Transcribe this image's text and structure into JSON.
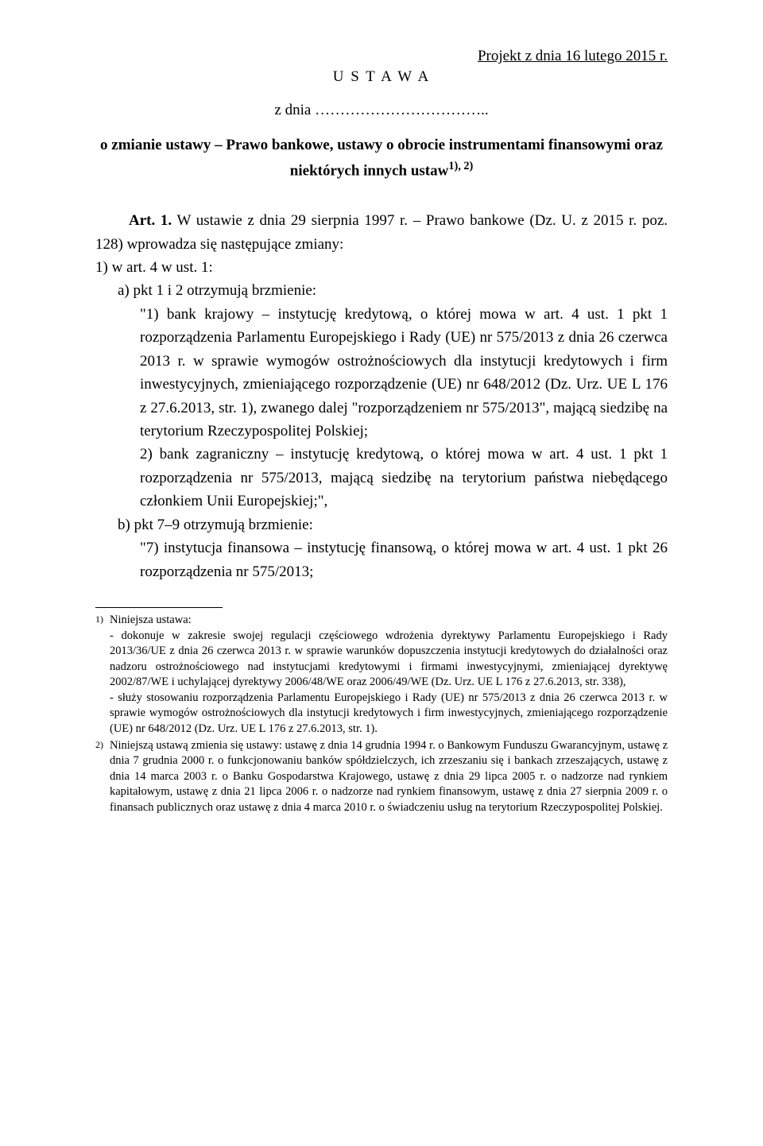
{
  "header": {
    "project_date": "Projekt z dnia 16 lutego 2015 r.",
    "ustawa": "U S T A W A",
    "zdnia": "z dnia ……………………………..",
    "title_line1": "o zmianie ustawy – Prawo bankowe, ustawy o obrocie instrumentami finansowymi oraz",
    "title_line2_prefix": "niektórych innych ustaw",
    "title_line2_sup": "1), 2)"
  },
  "article": {
    "art1_intro": "Art. 1. W ustawie z dnia 29 sierpnia 1997 r. – Prawo bankowe (Dz. U. z 2015 r. poz. 128) wprowadza się następujące zmiany:",
    "pt1": "1) w art. 4 w ust. 1:",
    "a_intro": "a) pkt 1 i 2 otrzymują brzmienie:",
    "a_q1": "\"1) bank krajowy – instytucję kredytową, o której mowa w art. 4 ust. 1 pkt 1 rozporządzenia Parlamentu Europejskiego i Rady (UE) nr 575/2013 z dnia 26 czerwca 2013 r. w sprawie wymogów ostrożnościowych dla instytucji kredytowych i firm inwestycyjnych, zmieniającego rozporządzenie (UE) nr 648/2012 (Dz. Urz. UE L 176 z 27.6.2013, str. 1), zwanego dalej \"rozporządzeniem nr 575/2013\", mającą siedzibę na terytorium Rzeczypospolitej Polskiej;",
    "a_q2": "2) bank zagraniczny – instytucję kredytową, o której mowa w art. 4 ust. 1 pkt 1 rozporządzenia nr 575/2013, mającą siedzibę na terytorium państwa niebędącego członkiem Unii Europejskiej;\",",
    "b_intro": "b) pkt 7–9 otrzymują brzmienie:",
    "b_q7": "\"7) instytucja finansowa – instytucję finansową, o której mowa w art. 4 ust. 1 pkt 26 rozporządzenia nr 575/2013;"
  },
  "footnotes": {
    "fn1_marker": "1)",
    "fn1_intro": "Niniejsza ustawa:",
    "fn1_a": "- dokonuje w zakresie swojej regulacji częściowego wdrożenia dyrektywy Parlamentu Europejskiego i Rady 2013/36/UE z dnia 26 czerwca 2013 r. w sprawie warunków dopuszczenia instytucji kredytowych do działalności oraz nadzoru ostrożnościowego nad instytucjami kredytowymi i firmami inwestycyjnymi, zmieniającej dyrektywę 2002/87/WE i uchylającej dyrektywy 2006/48/WE oraz 2006/49/WE (Dz. Urz. UE L 176 z 27.6.2013, str. 338),",
    "fn1_b": "- służy stosowaniu rozporządzenia Parlamentu Europejskiego i Rady (UE) nr 575/2013 z dnia 26 czerwca 2013 r. w sprawie wymogów ostrożnościowych dla instytucji kredytowych i firm inwestycyjnych, zmieniającego rozporządzenie (UE) nr 648/2012 (Dz. Urz. UE L 176 z 27.6.2013, str. 1).",
    "fn2_marker": "2)",
    "fn2": "Niniejszą ustawą zmienia się ustawy: ustawę z dnia 14 grudnia 1994 r. o Bankowym Funduszu Gwarancyjnym, ustawę z dnia 7 grudnia 2000 r. o funkcjonowaniu banków spółdzielczych, ich zrzeszaniu się i bankach zrzeszających, ustawę z dnia 14 marca 2003 r. o Banku Gospodarstwa Krajowego, ustawę z dnia 29 lipca 2005 r. o nadzorze nad rynkiem kapitałowym, ustawę z dnia 21 lipca 2006 r. o nadzorze nad rynkiem finansowym, ustawę z dnia 27 sierpnia 2009 r. o finansach publicznych oraz ustawę z dnia 4 marca 2010 r. o świadczeniu usług na terytorium Rzeczypospolitej Polskiej."
  }
}
